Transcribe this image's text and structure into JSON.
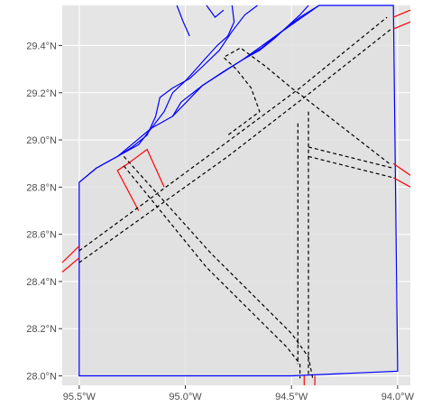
{
  "map": {
    "background_color": "#e5e5e5",
    "grid_color": "#ffffff",
    "coastline_color": "#0000ff",
    "area_boundary_color": "#0000ff",
    "area_fill_color": "#e0e0e0",
    "red_feature_color": "#ff0000",
    "dashed_feature_color": "#000000",
    "grid": true,
    "x_axis": {
      "range": [
        -95.58,
        -93.94
      ],
      "ticks": [
        -95.5,
        -95.0,
        -94.5,
        -94.0
      ],
      "tick_labels": [
        "95.5°W",
        "95.0°W",
        "94.5°W",
        "94.0°W"
      ]
    },
    "y_axis": {
      "range": [
        27.96,
        29.57
      ],
      "ticks": [
        28.0,
        28.2,
        28.4,
        28.6,
        28.8,
        29.0,
        29.2,
        29.4
      ],
      "tick_labels": [
        "28.0°N",
        "28.2°N",
        "28.4°N",
        "28.6°N",
        "28.8°N",
        "29.0°N",
        "29.2°N",
        "29.4°N"
      ]
    },
    "coastline": [
      [
        [
          -95.5,
          28.82
        ],
        [
          -95.42,
          28.88
        ],
        [
          -95.32,
          28.93
        ],
        [
          -95.22,
          28.98
        ],
        [
          -95.16,
          29.05
        ],
        [
          -95.1,
          29.12
        ],
        [
          -95.06,
          29.2
        ],
        [
          -95.0,
          29.25
        ],
        [
          -94.95,
          29.3
        ],
        [
          -94.9,
          29.35
        ],
        [
          -94.85,
          29.4
        ],
        [
          -94.8,
          29.44
        ],
        [
          -94.77,
          29.5
        ],
        [
          -94.78,
          29.57
        ]
      ],
      [
        [
          -94.66,
          29.57
        ],
        [
          -94.72,
          29.53
        ],
        [
          -94.78,
          29.46
        ],
        [
          -94.84,
          29.38
        ],
        [
          -94.92,
          29.31
        ],
        [
          -94.98,
          29.26
        ],
        [
          -95.06,
          29.22
        ],
        [
          -95.12,
          29.18
        ],
        [
          -95.14,
          29.1
        ],
        [
          -95.18,
          29.02
        ],
        [
          -95.25,
          28.97
        ],
        [
          -95.32,
          28.93
        ]
      ],
      [
        [
          -94.73,
          29.34
        ],
        [
          -94.65,
          29.38
        ],
        [
          -94.58,
          29.43
        ],
        [
          -94.52,
          29.48
        ],
        [
          -94.46,
          29.53
        ],
        [
          -94.42,
          29.57
        ]
      ],
      [
        [
          -94.37,
          29.57
        ],
        [
          -94.46,
          29.52
        ],
        [
          -94.56,
          29.45
        ],
        [
          -94.64,
          29.39
        ],
        [
          -94.73,
          29.34
        ],
        [
          -94.82,
          29.29
        ],
        [
          -94.92,
          29.23
        ],
        [
          -95.02,
          29.16
        ],
        [
          -95.06,
          29.1
        ]
      ],
      [
        [
          -95.04,
          29.57
        ],
        [
          -95.01,
          29.5
        ],
        [
          -94.98,
          29.44
        ]
      ],
      [
        [
          -94.9,
          29.57
        ],
        [
          -94.86,
          29.52
        ],
        [
          -94.82,
          29.55
        ]
      ]
    ],
    "area_boundary": [
      [
        -95.5,
        28.82
      ],
      [
        -95.5,
        28.0
      ],
      [
        -94.5,
        28.0
      ],
      [
        -94.0,
        28.02
      ],
      [
        -94.02,
        29.57
      ],
      [
        -94.37,
        29.57
      ],
      [
        -94.56,
        29.45
      ],
      [
        -94.73,
        29.34
      ],
      [
        -94.92,
        29.23
      ],
      [
        -95.06,
        29.1
      ],
      [
        -95.16,
        29.05
      ],
      [
        -95.32,
        28.93
      ],
      [
        -95.42,
        28.88
      ]
    ],
    "red_features": [
      [
        [
          -95.27,
          28.9
        ],
        [
          -95.32,
          28.87
        ],
        [
          -95.22,
          28.7
        ]
      ],
      [
        [
          -95.27,
          28.9
        ],
        [
          -95.18,
          28.96
        ],
        [
          -95.1,
          28.8
        ]
      ],
      [
        [
          -95.58,
          28.48
        ],
        [
          -95.5,
          28.55
        ]
      ],
      [
        [
          -95.58,
          28.44
        ],
        [
          -95.5,
          28.5
        ]
      ],
      [
        [
          -94.44,
          27.96
        ],
        [
          -94.44,
          28.0
        ]
      ],
      [
        [
          -94.39,
          27.96
        ],
        [
          -94.39,
          28.0
        ]
      ],
      [
        [
          -94.02,
          29.52
        ],
        [
          -93.94,
          29.55
        ]
      ],
      [
        [
          -94.02,
          29.47
        ],
        [
          -93.94,
          29.5
        ]
      ],
      [
        [
          -94.02,
          28.9
        ],
        [
          -93.94,
          28.85
        ]
      ],
      [
        [
          -94.02,
          28.84
        ],
        [
          -93.94,
          28.8
        ]
      ]
    ],
    "dashed_features": [
      [
        [
          -95.5,
          28.53
        ],
        [
          -94.82,
          28.98
        ],
        [
          -94.46,
          29.22
        ],
        [
          -94.05,
          29.52
        ]
      ],
      [
        [
          -95.5,
          28.48
        ],
        [
          -94.8,
          28.93
        ],
        [
          -94.44,
          29.18
        ],
        [
          -94.03,
          29.47
        ]
      ],
      [
        [
          -95.29,
          28.93
        ],
        [
          -94.88,
          28.52
        ],
        [
          -94.5,
          28.18
        ],
        [
          -94.42,
          28.08
        ],
        [
          -94.4,
          27.99
        ]
      ],
      [
        [
          -95.29,
          28.89
        ],
        [
          -94.9,
          28.46
        ],
        [
          -94.52,
          28.12
        ],
        [
          -94.46,
          28.05
        ],
        [
          -94.46,
          27.99
        ]
      ],
      [
        [
          -94.04,
          28.9
        ],
        [
          -94.44,
          29.18
        ],
        [
          -94.5,
          29.22
        ],
        [
          -94.62,
          29.31
        ],
        [
          -94.74,
          29.39
        ],
        [
          -94.82,
          29.35
        ],
        [
          -94.76,
          29.3
        ],
        [
          -94.69,
          29.22
        ],
        [
          -94.65,
          29.12
        ],
        [
          -94.8,
          29.02
        ]
      ],
      [
        [
          -94.42,
          29.12
        ],
        [
          -94.42,
          28.0
        ]
      ],
      [
        [
          -94.47,
          29.07
        ],
        [
          -94.47,
          28.05
        ]
      ],
      [
        [
          -94.42,
          28.97
        ],
        [
          -94.02,
          28.88
        ]
      ],
      [
        [
          -94.42,
          28.93
        ],
        [
          -94.02,
          28.84
        ]
      ]
    ]
  }
}
